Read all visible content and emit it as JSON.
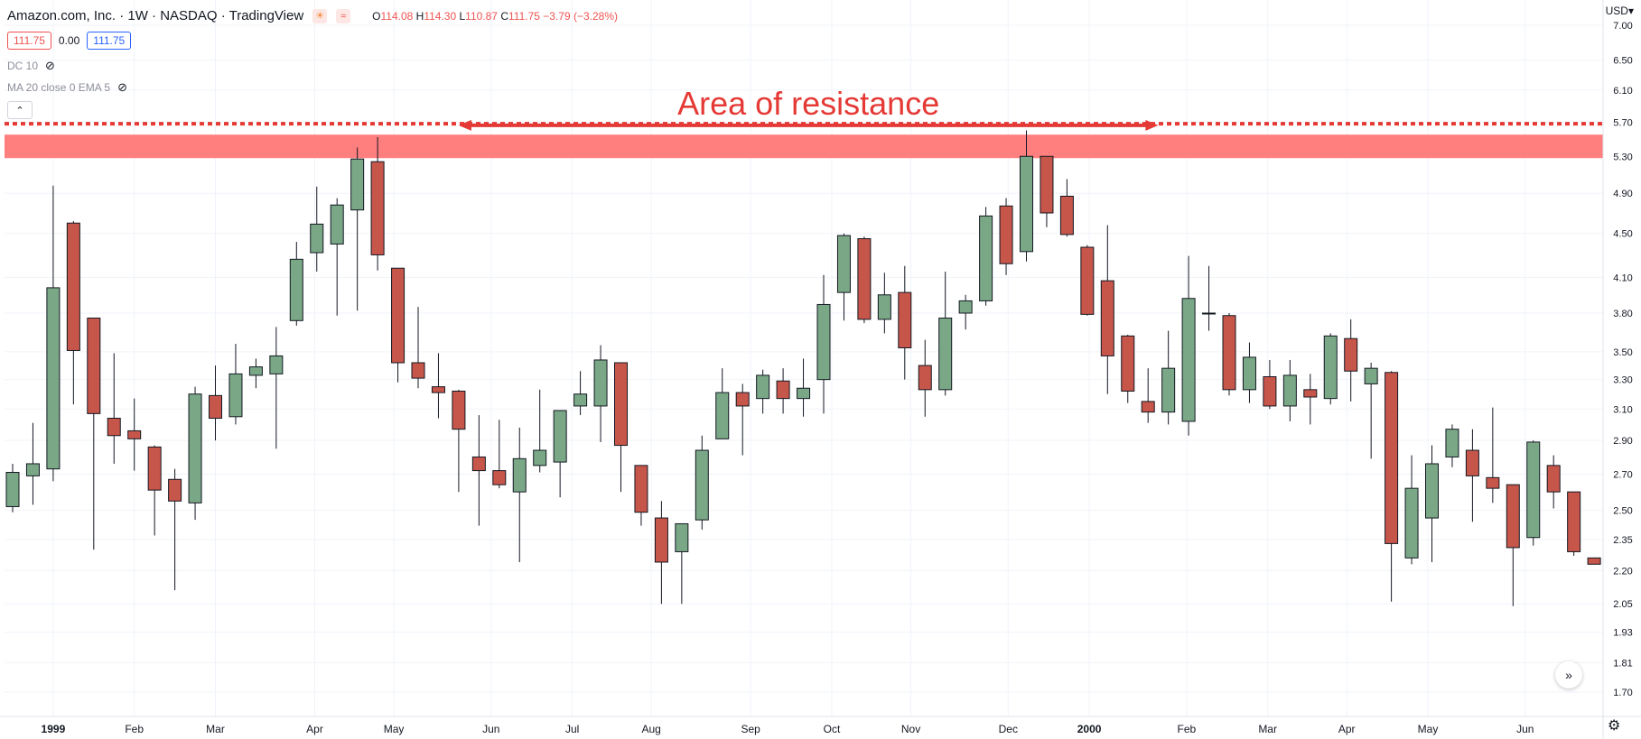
{
  "header": {
    "symbol": "Amazon.com, Inc. · 1W · NASDAQ · TradingView",
    "open_label": "O",
    "open": "114.08",
    "high_label": "H",
    "high": "114.30",
    "low_label": "L",
    "low": "110.87",
    "close_label": "C",
    "close": "111.75",
    "change": "−3.79 (−3.28%)"
  },
  "price_boxes": {
    "bid": "111.75",
    "spread": "0.00",
    "ask": "111.75"
  },
  "indicators": [
    {
      "label": "DC 10"
    },
    {
      "label": "MA 20 close 0 EMA 5"
    }
  ],
  "currency": "USD",
  "colors": {
    "up": "#7aa887",
    "down": "#c7564a",
    "wick": "#131722",
    "resistance": "#ff7f7f",
    "annotation": "#e53935"
  },
  "chart_data": {
    "type": "candlestick",
    "scale": "log",
    "ylim": [
      1.6,
      7.4
    ],
    "y_ticks": [
      "7.00",
      "6.50",
      "6.10",
      "5.70",
      "5.30",
      "4.90",
      "4.50",
      "4.10",
      "3.80",
      "3.50",
      "3.30",
      "3.10",
      "2.90",
      "2.70",
      "2.50",
      "2.35",
      "2.20",
      "2.05",
      "1.93",
      "1.81",
      "1.70"
    ],
    "x_labels": [
      {
        "label": "1999",
        "bar": 2.0
      },
      {
        "label": "Feb",
        "bar": 6.0
      },
      {
        "label": "Mar",
        "bar": 10.0
      },
      {
        "label": "Apr",
        "bar": 14.9
      },
      {
        "label": "May",
        "bar": 18.8
      },
      {
        "label": "Jun",
        "bar": 23.6
      },
      {
        "label": "Jul",
        "bar": 27.6
      },
      {
        "label": "Aug",
        "bar": 31.5
      },
      {
        "label": "Sep",
        "bar": 36.4
      },
      {
        "label": "Oct",
        "bar": 40.4
      },
      {
        "label": "Nov",
        "bar": 44.3
      },
      {
        "label": "Dec",
        "bar": 49.1
      },
      {
        "label": "2000",
        "bar": 53.1
      },
      {
        "label": "Feb",
        "bar": 57.9
      },
      {
        "label": "Mar",
        "bar": 61.9
      },
      {
        "label": "Apr",
        "bar": 65.8
      },
      {
        "label": "May",
        "bar": 69.8
      },
      {
        "label": "Jun",
        "bar": 74.6
      }
    ],
    "candles": [
      {
        "o": 2.52,
        "h": 2.76,
        "l": 2.49,
        "c": 2.71
      },
      {
        "o": 2.69,
        "h": 3.01,
        "l": 2.53,
        "c": 2.76
      },
      {
        "o": 2.73,
        "h": 4.98,
        "l": 2.66,
        "c": 4.01
      },
      {
        "o": 4.6,
        "h": 4.62,
        "l": 3.13,
        "c": 3.51
      },
      {
        "o": 3.76,
        "h": 3.76,
        "l": 2.3,
        "c": 3.07
      },
      {
        "o": 3.04,
        "h": 3.49,
        "l": 2.76,
        "c": 2.93
      },
      {
        "o": 2.96,
        "h": 3.17,
        "l": 2.72,
        "c": 2.91
      },
      {
        "o": 2.86,
        "h": 2.87,
        "l": 2.37,
        "c": 2.61
      },
      {
        "o": 2.67,
        "h": 2.73,
        "l": 2.11,
        "c": 2.55
      },
      {
        "o": 2.54,
        "h": 3.25,
        "l": 2.45,
        "c": 3.2
      },
      {
        "o": 3.19,
        "h": 3.4,
        "l": 2.9,
        "c": 3.04
      },
      {
        "o": 3.05,
        "h": 3.56,
        "l": 3.0,
        "c": 3.34
      },
      {
        "o": 3.33,
        "h": 3.45,
        "l": 3.24,
        "c": 3.39
      },
      {
        "o": 3.34,
        "h": 3.69,
        "l": 2.85,
        "c": 3.47
      },
      {
        "o": 3.74,
        "h": 4.42,
        "l": 3.7,
        "c": 4.26
      },
      {
        "o": 4.32,
        "h": 4.97,
        "l": 4.15,
        "c": 4.59
      },
      {
        "o": 4.4,
        "h": 4.85,
        "l": 3.78,
        "c": 4.78
      },
      {
        "o": 4.73,
        "h": 5.4,
        "l": 3.82,
        "c": 5.27
      },
      {
        "o": 5.24,
        "h": 5.52,
        "l": 4.16,
        "c": 4.3
      },
      {
        "o": 4.18,
        "h": 4.18,
        "l": 3.28,
        "c": 3.42
      },
      {
        "o": 3.42,
        "h": 3.85,
        "l": 3.24,
        "c": 3.31
      },
      {
        "o": 3.25,
        "h": 3.49,
        "l": 3.04,
        "c": 3.21
      },
      {
        "o": 3.22,
        "h": 3.23,
        "l": 2.6,
        "c": 2.97
      },
      {
        "o": 2.8,
        "h": 3.06,
        "l": 2.42,
        "c": 2.72
      },
      {
        "o": 2.72,
        "h": 3.03,
        "l": 2.62,
        "c": 2.64
      },
      {
        "o": 2.6,
        "h": 2.98,
        "l": 2.24,
        "c": 2.79
      },
      {
        "o": 2.75,
        "h": 3.23,
        "l": 2.71,
        "c": 2.84
      },
      {
        "o": 2.77,
        "h": 3.09,
        "l": 2.57,
        "c": 3.09
      },
      {
        "o": 3.12,
        "h": 3.36,
        "l": 3.06,
        "c": 3.2
      },
      {
        "o": 3.12,
        "h": 3.55,
        "l": 2.89,
        "c": 3.44
      },
      {
        "o": 3.42,
        "h": 3.42,
        "l": 2.6,
        "c": 2.87
      },
      {
        "o": 2.75,
        "h": 2.75,
        "l": 2.42,
        "c": 2.49
      },
      {
        "o": 2.46,
        "h": 2.55,
        "l": 2.05,
        "c": 2.24
      },
      {
        "o": 2.29,
        "h": 2.43,
        "l": 2.05,
        "c": 2.43
      },
      {
        "o": 2.45,
        "h": 2.93,
        "l": 2.4,
        "c": 2.84
      },
      {
        "o": 2.91,
        "h": 3.38,
        "l": 2.91,
        "c": 3.21
      },
      {
        "o": 3.21,
        "h": 3.27,
        "l": 2.81,
        "c": 3.12
      },
      {
        "o": 3.17,
        "h": 3.37,
        "l": 3.07,
        "c": 3.33
      },
      {
        "o": 3.29,
        "h": 3.38,
        "l": 3.07,
        "c": 3.17
      },
      {
        "o": 3.17,
        "h": 3.45,
        "l": 3.05,
        "c": 3.24
      },
      {
        "o": 3.3,
        "h": 4.12,
        "l": 3.07,
        "c": 3.87
      },
      {
        "o": 3.97,
        "h": 4.5,
        "l": 3.74,
        "c": 4.48
      },
      {
        "o": 4.45,
        "h": 4.47,
        "l": 3.72,
        "c": 3.75
      },
      {
        "o": 3.75,
        "h": 4.14,
        "l": 3.64,
        "c": 3.95
      },
      {
        "o": 3.97,
        "h": 4.2,
        "l": 3.3,
        "c": 3.53
      },
      {
        "o": 3.4,
        "h": 3.59,
        "l": 3.05,
        "c": 3.23
      },
      {
        "o": 3.23,
        "h": 4.15,
        "l": 3.19,
        "c": 3.76
      },
      {
        "o": 3.8,
        "h": 3.95,
        "l": 3.67,
        "c": 3.9
      },
      {
        "o": 3.9,
        "h": 4.76,
        "l": 3.86,
        "c": 4.67
      },
      {
        "o": 4.77,
        "h": 4.85,
        "l": 4.12,
        "c": 4.22
      },
      {
        "o": 4.33,
        "h": 5.6,
        "l": 4.24,
        "c": 5.3
      },
      {
        "o": 5.3,
        "h": 5.3,
        "l": 4.56,
        "c": 4.7
      },
      {
        "o": 4.87,
        "h": 5.05,
        "l": 4.47,
        "c": 4.49
      },
      {
        "o": 4.37,
        "h": 4.39,
        "l": 3.78,
        "c": 3.79
      },
      {
        "o": 4.07,
        "h": 4.58,
        "l": 3.2,
        "c": 3.47
      },
      {
        "o": 3.62,
        "h": 3.63,
        "l": 3.14,
        "c": 3.22
      },
      {
        "o": 3.15,
        "h": 3.38,
        "l": 3.01,
        "c": 3.08
      },
      {
        "o": 3.08,
        "h": 3.66,
        "l": 3.0,
        "c": 3.38
      },
      {
        "o": 3.02,
        "h": 4.29,
        "l": 2.93,
        "c": 3.92
      },
      {
        "o": 3.8,
        "h": 4.2,
        "l": 3.66,
        "c": 3.8
      },
      {
        "o": 3.78,
        "h": 3.8,
        "l": 3.19,
        "c": 3.23
      },
      {
        "o": 3.23,
        "h": 3.57,
        "l": 3.14,
        "c": 3.46
      },
      {
        "o": 3.32,
        "h": 3.44,
        "l": 3.1,
        "c": 3.12
      },
      {
        "o": 3.12,
        "h": 3.44,
        "l": 3.02,
        "c": 3.33
      },
      {
        "o": 3.23,
        "h": 3.34,
        "l": 3.0,
        "c": 3.18
      },
      {
        "o": 3.17,
        "h": 3.64,
        "l": 3.13,
        "c": 3.62
      },
      {
        "o": 3.6,
        "h": 3.75,
        "l": 3.15,
        "c": 3.36
      },
      {
        "o": 3.27,
        "h": 3.42,
        "l": 2.79,
        "c": 3.38
      },
      {
        "o": 3.35,
        "h": 3.36,
        "l": 2.06,
        "c": 2.33
      },
      {
        "o": 2.26,
        "h": 2.81,
        "l": 2.23,
        "c": 2.62
      },
      {
        "o": 2.46,
        "h": 2.87,
        "l": 2.24,
        "c": 2.76
      },
      {
        "o": 2.8,
        "h": 3.0,
        "l": 2.74,
        "c": 2.97
      },
      {
        "o": 2.84,
        "h": 2.97,
        "l": 2.44,
        "c": 2.69
      },
      {
        "o": 2.68,
        "h": 3.11,
        "l": 2.54,
        "c": 2.62
      },
      {
        "o": 2.64,
        "h": 2.64,
        "l": 2.04,
        "c": 2.31
      },
      {
        "o": 2.36,
        "h": 2.9,
        "l": 2.32,
        "c": 2.89
      },
      {
        "o": 2.75,
        "h": 2.81,
        "l": 2.51,
        "c": 2.6
      },
      {
        "o": 2.6,
        "h": 2.6,
        "l": 2.27,
        "c": 2.29
      },
      {
        "o": 2.26,
        "h": 2.26,
        "l": 2.23,
        "c": 2.23
      }
    ],
    "resistance_zone": {
      "low": 5.28,
      "high": 5.55
    },
    "resistance_line": 5.68,
    "annotation": {
      "text": "Area of resistance",
      "from_bar": 22.0,
      "to_bar": 56.5,
      "price": 6.17
    }
  }
}
